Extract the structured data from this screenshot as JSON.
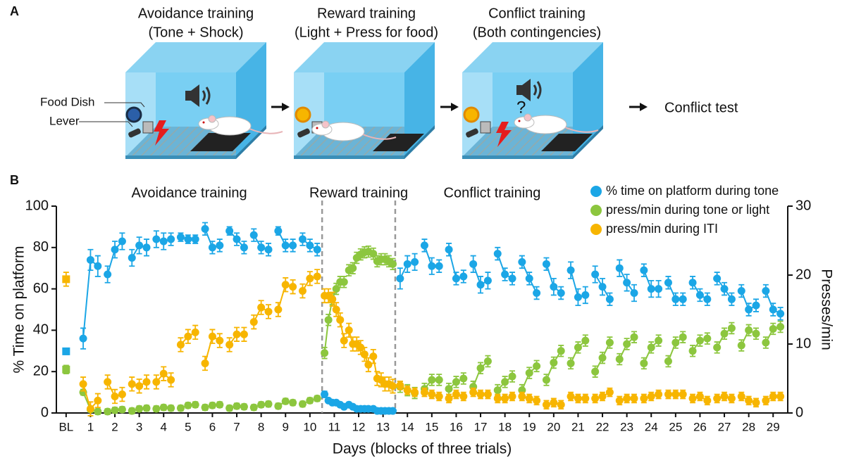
{
  "panel_a": {
    "label": "A",
    "stages": [
      {
        "title": "Avoidance training",
        "subtitle": "(Tone + Shock)"
      },
      {
        "title": "Reward training",
        "subtitle": "(Light + Press for food)"
      },
      {
        "title": "Conflict training",
        "subtitle": "(Both contingencies)"
      }
    ],
    "food_dish": "Food Dish",
    "lever": "Lever",
    "question": "?",
    "next": "Conflict test"
  },
  "panel_b_label": "B",
  "chart_data": {
    "type": "line",
    "xlabel": "Days (blocks of three trials)",
    "ylabel": "% Time on platform",
    "y2label": "Presses/min",
    "phases": [
      "Avoidance training",
      "Reward training",
      "Conflict training"
    ],
    "phase_dividers": [
      10.5,
      13.5
    ],
    "xlim": [
      -0.4,
      29.6
    ],
    "ylim": [
      0,
      100
    ],
    "y2lim": [
      0,
      30
    ],
    "xticks": [
      {
        "value": 0,
        "label": "BL"
      },
      1,
      2,
      3,
      4,
      5,
      6,
      7,
      8,
      9,
      10,
      11,
      12,
      13,
      14,
      15,
      16,
      17,
      18,
      19,
      20,
      21,
      22,
      23,
      24,
      25,
      26,
      27,
      28,
      29
    ],
    "yticks": [
      0,
      20,
      40,
      60,
      80,
      100
    ],
    "y2ticks": [
      0,
      10,
      20,
      30
    ],
    "legend": "upper right",
    "x": [
      0,
      0.7,
      1,
      1.3,
      1.7,
      2,
      2.3,
      2.7,
      3,
      3.3,
      3.7,
      4,
      4.3,
      4.7,
      5,
      5.3,
      5.7,
      6,
      6.3,
      6.7,
      7,
      7.3,
      7.7,
      8,
      8.3,
      8.7,
      9,
      9.3,
      9.7,
      10,
      10.3,
      10.6,
      10.76,
      10.92,
      11.08,
      11.24,
      11.4,
      11.6,
      11.76,
      11.92,
      12.08,
      12.24,
      12.4,
      12.6,
      12.76,
      12.92,
      13.08,
      13.24,
      13.4,
      13.7,
      14,
      14.3,
      14.7,
      15,
      15.3,
      15.7,
      16,
      16.3,
      16.7,
      17,
      17.3,
      17.7,
      18,
      18.3,
      18.7,
      19,
      19.3,
      19.7,
      20,
      20.3,
      20.7,
      21,
      21.3,
      21.7,
      22,
      22.3,
      22.7,
      23,
      23.3,
      23.7,
      24,
      24.3,
      24.7,
      25,
      25.3,
      25.7,
      26,
      26.3,
      26.7,
      27,
      27.3,
      27.7,
      28,
      28.3,
      28.7,
      29,
      29.3
    ],
    "series": [
      {
        "name": "% time on platform during tone",
        "color": "#1ba6e6",
        "axis": "y",
        "values": [
          29.8,
          36,
          74,
          71,
          67,
          79,
          83,
          75,
          81,
          80,
          84,
          83,
          84,
          85,
          84,
          84,
          89,
          80,
          81,
          88,
          84,
          80,
          86,
          80,
          79,
          88,
          81,
          81,
          84,
          81,
          79,
          9,
          6,
          5,
          5,
          4,
          3,
          4,
          3,
          2,
          2,
          2,
          2,
          2,
          1,
          1,
          1,
          1,
          1,
          65,
          72,
          73,
          81,
          71,
          71,
          79,
          65,
          66,
          72,
          62,
          64,
          77,
          67,
          65,
          73,
          65,
          58,
          72,
          61,
          58,
          69,
          56,
          57,
          67,
          61,
          55,
          70,
          63,
          58,
          69,
          60,
          60,
          63,
          55,
          55,
          63,
          57,
          55,
          65,
          60,
          55,
          59,
          50,
          52,
          59,
          50,
          48
        ],
        "errors": [
          1.5,
          5,
          5,
          5,
          4,
          4,
          4,
          4,
          4,
          4,
          4,
          4,
          3,
          2,
          2,
          2,
          3,
          3,
          3,
          2,
          3,
          3,
          3,
          3,
          3,
          2,
          3,
          3,
          3,
          3,
          3,
          1.5,
          1,
          1,
          1,
          1,
          1,
          1,
          1,
          1,
          1,
          1,
          1,
          1,
          1,
          1,
          1,
          1,
          1,
          5,
          4,
          4,
          3,
          4,
          3,
          3,
          3,
          3,
          4,
          4,
          4,
          3,
          3,
          3,
          3,
          3,
          3,
          3,
          4,
          3,
          4,
          4,
          4,
          4,
          4,
          3,
          4,
          4,
          4,
          3,
          4,
          4,
          3,
          3,
          3,
          3,
          3,
          3,
          3,
          3,
          3,
          3,
          3,
          3,
          3,
          3,
          3
        ]
      },
      {
        "name": "press/min during tone or light",
        "color": "#8cc63e",
        "axis": "y2",
        "values": [
          6.3,
          3.0,
          0.5,
          0.2,
          0.2,
          0.4,
          0.5,
          0.3,
          0.6,
          0.7,
          0.6,
          0.8,
          0.7,
          0.7,
          1.1,
          1.2,
          0.8,
          1.1,
          1.2,
          0.7,
          1.0,
          0.9,
          0.8,
          1.2,
          1.3,
          1.0,
          1.7,
          1.5,
          1.3,
          1.8,
          2.1,
          8.7,
          13.5,
          16.5,
          18,
          19,
          19,
          20.7,
          21,
          22.5,
          23,
          23.3,
          23.4,
          23.1,
          22,
          22.3,
          22.3,
          22,
          21.6,
          3.8,
          3.3,
          2.9,
          3.5,
          4.8,
          4.8,
          3.5,
          4.5,
          5.0,
          3.8,
          6.5,
          7.5,
          3.3,
          4.5,
          5.3,
          3.3,
          5.8,
          6.8,
          4.8,
          7.3,
          9.0,
          7.2,
          9.5,
          10.5,
          6.0,
          8.0,
          10.2,
          7.8,
          10.0,
          11.0,
          7.2,
          9.5,
          10.5,
          7.5,
          10.2,
          11.0,
          9.0,
          10.5,
          10.8,
          9.5,
          11.5,
          12.3,
          9.8,
          12.0,
          11.5,
          10.2,
          12.2,
          12.5
        ],
        "errors": [
          0.6,
          0.4,
          0.4,
          0.4,
          0.4,
          0.4,
          0.4,
          0.4,
          0.4,
          0.4,
          0.4,
          0.4,
          0.4,
          0.4,
          0.4,
          0.4,
          0.4,
          0.4,
          0.4,
          0.4,
          0.4,
          0.4,
          0.4,
          0.4,
          0.4,
          0.4,
          0.4,
          0.4,
          0.4,
          0.4,
          0.4,
          0.8,
          0.8,
          0.8,
          0.8,
          0.8,
          0.8,
          0.8,
          0.8,
          0.8,
          0.8,
          0.8,
          0.8,
          0.8,
          0.8,
          0.8,
          0.8,
          0.8,
          0.8,
          0.8,
          0.8,
          0.8,
          0.8,
          0.8,
          0.8,
          0.8,
          0.8,
          0.8,
          0.8,
          0.8,
          0.8,
          0.8,
          0.8,
          0.8,
          0.8,
          0.8,
          0.8,
          0.8,
          0.8,
          0.8,
          0.8,
          0.8,
          0.8,
          0.8,
          0.8,
          0.8,
          0.8,
          0.8,
          0.8,
          0.8,
          0.8,
          0.8,
          0.8,
          0.8,
          0.8,
          0.8,
          0.8,
          0.8,
          0.8,
          0.8,
          0.8,
          0.8,
          0.8,
          0.8,
          0.8,
          0.8,
          0.8
        ]
      },
      {
        "name": "press/min during ITI",
        "color": "#f7b500",
        "axis": "y2",
        "values": [
          19.4,
          4.2,
          0.6,
          1.8,
          4.5,
          2.4,
          2.7,
          4.2,
          3.9,
          4.5,
          4.5,
          5.7,
          4.8,
          9.9,
          11.1,
          11.7,
          7.2,
          11.1,
          10.5,
          9.9,
          11.4,
          11.4,
          13.2,
          15.3,
          14.7,
          15.0,
          18.6,
          18.3,
          17.7,
          19.5,
          19.8,
          17,
          17,
          16.5,
          15,
          13.5,
          10.5,
          12,
          10,
          10,
          9.5,
          8.5,
          7,
          8.2,
          5,
          4.8,
          4.2,
          4.2,
          3.9,
          4.0,
          3.3,
          3.0,
          3.0,
          2.7,
          2.4,
          2.1,
          2.7,
          2.4,
          3.0,
          2.7,
          2.7,
          2.1,
          2.1,
          2.4,
          2.4,
          2.1,
          1.8,
          1.2,
          1.5,
          1.2,
          2.4,
          2.1,
          2.1,
          2.1,
          2.4,
          3.0,
          1.8,
          2.1,
          2.1,
          2.1,
          2.4,
          2.7,
          2.7,
          2.7,
          2.7,
          2.1,
          2.4,
          1.8,
          2.1,
          2.4,
          2.1,
          2.4,
          1.8,
          1.5,
          1.8,
          2.4,
          2.4
        ],
        "errors": [
          1,
          1,
          1,
          1,
          1,
          1,
          1,
          1,
          1,
          1,
          1,
          1,
          1,
          1,
          1,
          1,
          1,
          1,
          1,
          1,
          1,
          1,
          1,
          1,
          1,
          1,
          1,
          1,
          1,
          1,
          1,
          1,
          1,
          1,
          1,
          1,
          1,
          1,
          1,
          1,
          1,
          1,
          1,
          1,
          1,
          1,
          1,
          1,
          1,
          0.6,
          0.6,
          0.6,
          0.6,
          0.6,
          0.6,
          0.6,
          0.6,
          0.6,
          0.6,
          0.6,
          0.6,
          0.6,
          0.6,
          0.6,
          0.6,
          0.6,
          0.6,
          0.6,
          0.6,
          0.6,
          0.6,
          0.6,
          0.6,
          0.6,
          0.6,
          0.6,
          0.6,
          0.6,
          0.6,
          0.6,
          0.6,
          0.6,
          0.6,
          0.6,
          0.6,
          0.6,
          0.6,
          0.6,
          0.6,
          0.6,
          0.6,
          0.6,
          0.6,
          0.6,
          0.6,
          0.6,
          0.6
        ]
      }
    ]
  }
}
